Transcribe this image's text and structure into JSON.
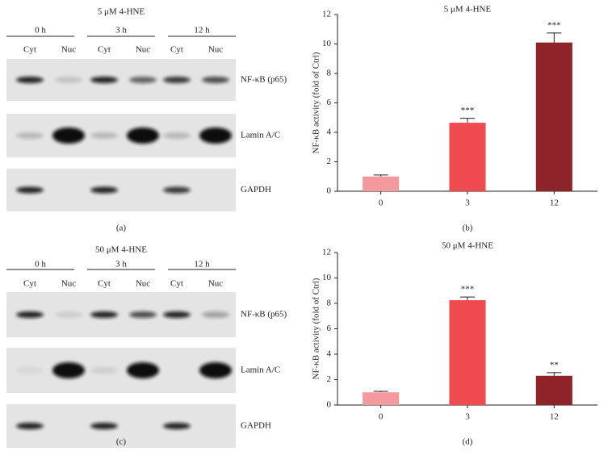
{
  "chart_data": [
    {
      "type": "bar",
      "title": "5 μM 4-HNE",
      "ylabel": "NF-κB activity (fold of Ctrl)",
      "categories": [
        "0",
        "3",
        "12"
      ],
      "values": [
        1.0,
        4.65,
        10.1
      ],
      "errors": [
        0.1,
        0.3,
        0.65
      ],
      "colors": [
        "#f4999c",
        "#ef4a4f",
        "#8e2329"
      ],
      "annotations": [
        {
          "category": "3",
          "text": "***"
        },
        {
          "category": "12",
          "text": "***"
        }
      ],
      "ylim": [
        0,
        12
      ],
      "yticks": [
        0,
        2,
        4,
        6,
        8,
        10,
        12
      ],
      "panel_label": "(b)"
    },
    {
      "type": "bar",
      "title": "50 μM 4-HNE",
      "ylabel": "NF-κB activity (fold of Ctrl)",
      "categories": [
        "0",
        "3",
        "12"
      ],
      "values": [
        1.0,
        8.25,
        2.3
      ],
      "errors": [
        0.08,
        0.25,
        0.25
      ],
      "colors": [
        "#f4999c",
        "#ef4a4f",
        "#8e2329"
      ],
      "annotations": [
        {
          "category": "3",
          "text": "***"
        },
        {
          "category": "12",
          "text": "**"
        }
      ],
      "ylim": [
        0,
        12
      ],
      "yticks": [
        0,
        2,
        4,
        6,
        8,
        10,
        12
      ],
      "panel_label": "(d)"
    }
  ],
  "blots": [
    {
      "title": "5 μM 4-HNE",
      "times": [
        "0 h",
        "3 h",
        "12 h"
      ],
      "fractions": [
        "Cyt",
        "Nuc",
        "Cyt",
        "Nuc",
        "Cyt",
        "Nuc"
      ],
      "rows": [
        "NF-κB (p65)",
        "Lamin A/C",
        "GAPDH"
      ],
      "panel_label": "(a)"
    },
    {
      "title": "50 μM 4-HNE",
      "times": [
        "0 h",
        "3 h",
        "12 h"
      ],
      "fractions": [
        "Cyt",
        "Nuc",
        "Cyt",
        "Nuc",
        "Cyt",
        "Nuc"
      ],
      "rows": [
        "NF-κB (p65)",
        "Lamin A/C",
        "GAPDH"
      ],
      "panel_label": "(c)"
    }
  ]
}
